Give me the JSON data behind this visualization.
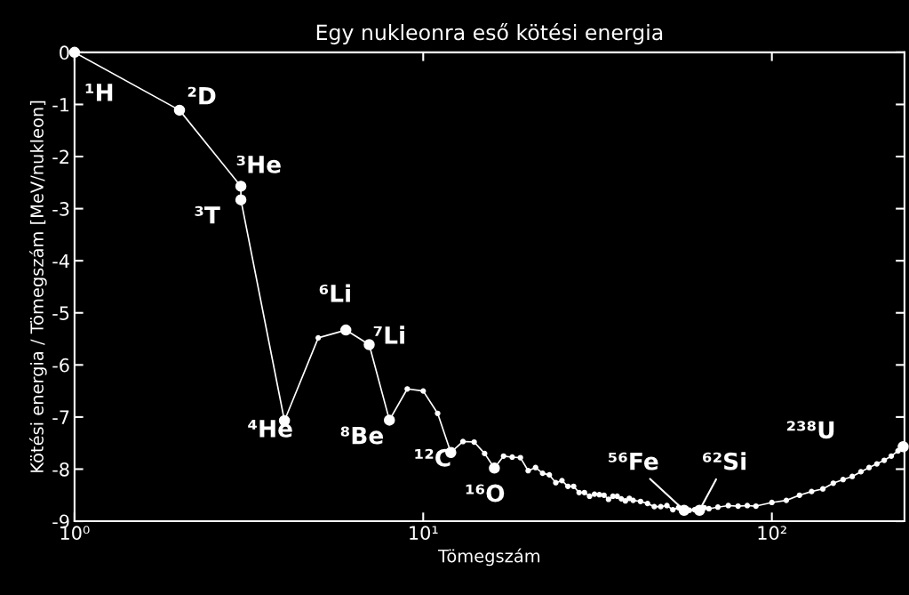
{
  "chart_data": {
    "type": "line",
    "title": "Egy nukleonra eső kötési energia",
    "xlabel": "Tömegszám",
    "ylabel": "Kötési energia / Tömegszám [MeV/nukleon]",
    "log": "x",
    "xlim": [
      1,
      240
    ],
    "ylim": [
      -9,
      0
    ],
    "xticks": [
      {
        "value": 1,
        "label": "10⁰"
      },
      {
        "value": 10,
        "label": "10¹"
      },
      {
        "value": 100,
        "label": "10²"
      }
    ],
    "yticks": [
      -9,
      -8,
      -7,
      -6,
      -5,
      -4,
      -3,
      -2,
      -1,
      0
    ],
    "grid": false,
    "marker": "circle",
    "line_style": "solid",
    "series": [
      {
        "color": "#ffffff",
        "x": [
          1,
          2,
          3,
          3,
          4,
          5,
          6,
          7,
          8,
          9,
          10,
          11,
          12,
          13,
          14,
          15,
          16,
          17,
          18,
          19,
          20,
          21,
          22,
          23,
          24,
          25,
          26,
          27,
          28,
          29,
          30,
          31,
          32,
          33,
          34,
          35,
          36,
          37,
          38,
          39,
          40,
          42,
          44,
          46,
          48,
          50,
          52,
          54,
          56,
          58,
          60,
          62,
          64,
          66,
          70,
          75,
          80,
          85,
          90,
          100,
          110,
          120,
          130,
          140,
          150,
          160,
          170,
          180,
          190,
          200,
          210,
          220,
          230,
          238
        ],
        "values": [
          0,
          -1.11,
          -2.57,
          -2.83,
          -7.07,
          -5.48,
          -5.33,
          -5.61,
          -7.06,
          -6.46,
          -6.5,
          -6.93,
          -7.68,
          -7.47,
          -7.48,
          -7.7,
          -7.98,
          -7.75,
          -7.77,
          -7.78,
          -8.03,
          -7.97,
          -8.08,
          -8.11,
          -8.26,
          -8.22,
          -8.33,
          -8.33,
          -8.45,
          -8.45,
          -8.52,
          -8.48,
          -8.49,
          -8.5,
          -8.58,
          -8.52,
          -8.52,
          -8.57,
          -8.61,
          -8.56,
          -8.6,
          -8.62,
          -8.66,
          -8.72,
          -8.72,
          -8.7,
          -8.78,
          -8.74,
          -8.79,
          -8.79,
          -8.78,
          -8.79,
          -8.74,
          -8.76,
          -8.73,
          -8.7,
          -8.71,
          -8.7,
          -8.71,
          -8.64,
          -8.6,
          -8.5,
          -8.43,
          -8.38,
          -8.27,
          -8.2,
          -8.14,
          -8.05,
          -7.97,
          -7.9,
          -7.83,
          -7.75,
          -7.65,
          -7.57
        ]
      }
    ],
    "annotations": [
      {
        "text": "¹H",
        "x": 1,
        "y": 0
      },
      {
        "text": "²D",
        "x": 2,
        "y": -1.11
      },
      {
        "text": "³He",
        "x": 3,
        "y": -2.57
      },
      {
        "text": "³T",
        "x": 3,
        "y": -2.83
      },
      {
        "text": "⁴He",
        "x": 4,
        "y": -7.07
      },
      {
        "text": "⁶Li",
        "x": 6,
        "y": -5.33
      },
      {
        "text": "⁷Li",
        "x": 7,
        "y": -5.61
      },
      {
        "text": "⁸Be",
        "x": 8,
        "y": -7.06
      },
      {
        "text": "¹²C",
        "x": 12,
        "y": -7.68
      },
      {
        "text": "¹⁶O",
        "x": 16,
        "y": -7.98
      },
      {
        "text": "⁵⁶Fe",
        "x": 56,
        "y": -8.79
      },
      {
        "text": "⁶²Si",
        "x": 62,
        "y": -8.79
      },
      {
        "text": "²³⁸U",
        "x": 238,
        "y": -7.57
      }
    ]
  }
}
